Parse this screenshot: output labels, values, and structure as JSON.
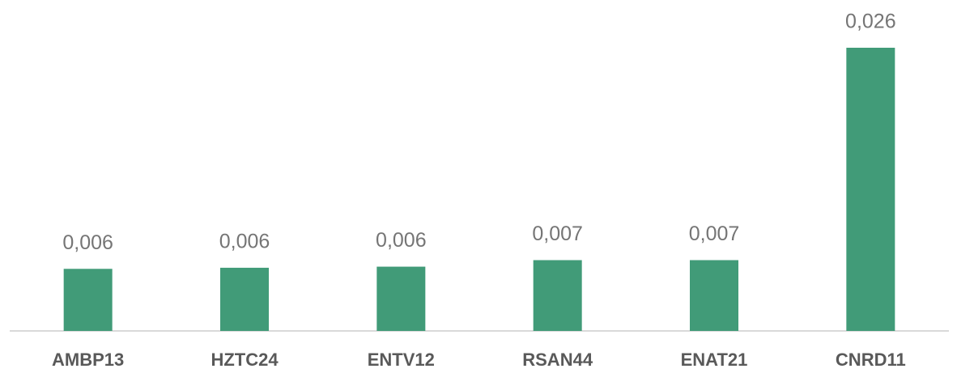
{
  "chart_data": {
    "type": "bar",
    "categories": [
      "AMBP13",
      "HZTC24",
      "ENTV12",
      "RSAN44",
      "ENAT21",
      "CNRD11"
    ],
    "values": [
      0.0057,
      0.0058,
      0.0059,
      0.0065,
      0.0065,
      0.026
    ],
    "value_labels": [
      "0,006",
      "0,006",
      "0,006",
      "0,007",
      "0,007",
      "0,026"
    ],
    "color": "#419b78"
  }
}
